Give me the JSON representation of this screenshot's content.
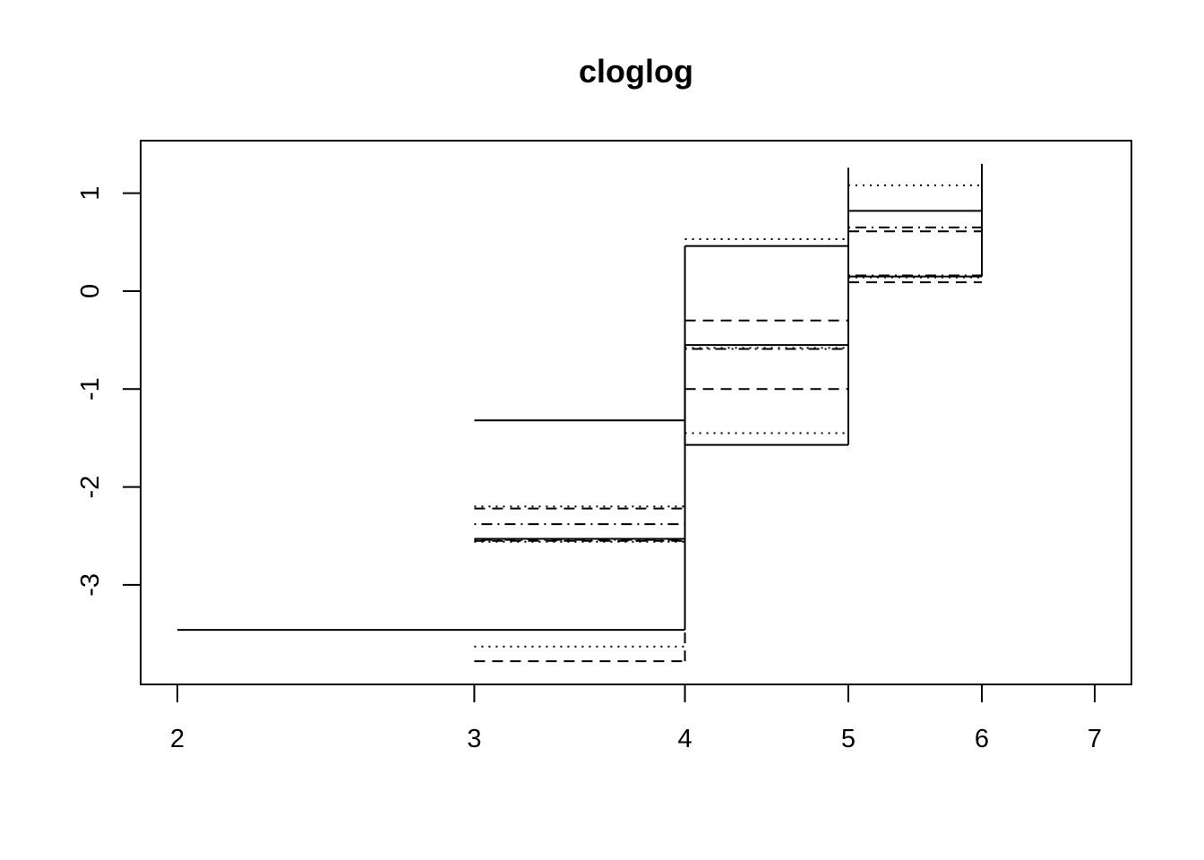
{
  "chart_data": {
    "type": "line",
    "title": "cloglog",
    "xlabel": "",
    "ylabel": "",
    "x_axis": {
      "ticks": [
        2,
        3,
        4,
        5,
        6,
        7
      ],
      "tick_labels": [
        "2",
        "3",
        "4",
        "5",
        "6",
        "7"
      ],
      "scale": "log"
    },
    "y_axis": {
      "ticks": [
        -3,
        -2,
        -1,
        0,
        1
      ],
      "tick_labels": [
        "-3",
        "-2",
        "-1",
        "0",
        "1"
      ],
      "ylim": [
        -3.98,
        1.5
      ]
    },
    "grid": false,
    "legend": "none",
    "color": "#000000",
    "series": [
      {
        "linestyle": "solid",
        "segments": [
          {
            "x": [
              2,
              4
            ],
            "y": [
              -3.46,
              -3.46
            ]
          },
          {
            "x": [
              4,
              4
            ],
            "y": [
              -3.46,
              0.46
            ]
          },
          {
            "x": [
              3,
              4
            ],
            "y": [
              -1.32,
              -1.32
            ]
          },
          {
            "x": [
              3,
              4
            ],
            "y": [
              -2.53,
              -2.53
            ]
          },
          {
            "x": [
              4,
              5
            ],
            "y": [
              0.46,
              0.46
            ]
          },
          {
            "x": [
              4,
              5
            ],
            "y": [
              -0.55,
              -0.55
            ]
          },
          {
            "x": [
              4,
              4
            ],
            "y": [
              -1.57,
              -0.55
            ]
          },
          {
            "x": [
              4,
              5
            ],
            "y": [
              -1.57,
              -1.57
            ]
          },
          {
            "x": [
              5,
              5
            ],
            "y": [
              -1.57,
              1.26
            ]
          },
          {
            "x": [
              5,
              6
            ],
            "y": [
              0.82,
              0.82
            ]
          },
          {
            "x": [
              5,
              6
            ],
            "y": [
              0.15,
              0.15
            ]
          },
          {
            "x": [
              6,
              6
            ],
            "y": [
              0.15,
              1.3
            ]
          }
        ]
      },
      {
        "linestyle": "dotted",
        "segments": [
          {
            "x": [
              3,
              4
            ],
            "y": [
              -3.63,
              -3.63
            ]
          },
          {
            "x": [
              3,
              4
            ],
            "y": [
              -2.2,
              -2.2
            ]
          },
          {
            "x": [
              3,
              4
            ],
            "y": [
              -2.56,
              -2.56
            ]
          },
          {
            "x": [
              4,
              5
            ],
            "y": [
              0.53,
              0.53
            ]
          },
          {
            "x": [
              4,
              5
            ],
            "y": [
              -1.45,
              -1.45
            ]
          },
          {
            "x": [
              4,
              5
            ],
            "y": [
              -0.58,
              -0.58
            ]
          },
          {
            "x": [
              5,
              6
            ],
            "y": [
              1.08,
              1.08
            ]
          },
          {
            "x": [
              5,
              6
            ],
            "y": [
              0.14,
              0.14
            ]
          }
        ]
      },
      {
        "linestyle": "dashed",
        "segments": [
          {
            "x": [
              3,
              4
            ],
            "y": [
              -3.78,
              -3.78
            ]
          },
          {
            "x": [
              4,
              4
            ],
            "y": [
              -3.78,
              -3.46
            ]
          },
          {
            "x": [
              3,
              4
            ],
            "y": [
              -2.22,
              -2.22
            ]
          },
          {
            "x": [
              3,
              4
            ],
            "y": [
              -2.55,
              -2.55
            ]
          },
          {
            "x": [
              4,
              5
            ],
            "y": [
              -0.3,
              -0.3
            ]
          },
          {
            "x": [
              4,
              5
            ],
            "y": [
              -1.0,
              -1.0
            ]
          },
          {
            "x": [
              5,
              6
            ],
            "y": [
              0.61,
              0.61
            ]
          },
          {
            "x": [
              5,
              6
            ],
            "y": [
              0.09,
              0.09
            ]
          }
        ]
      },
      {
        "linestyle": "dotdash",
        "segments": [
          {
            "x": [
              3,
              4
            ],
            "y": [
              -2.38,
              -2.38
            ]
          },
          {
            "x": [
              3,
              4
            ],
            "y": [
              -2.54,
              -2.54
            ]
          },
          {
            "x": [
              4,
              5
            ],
            "y": [
              -0.59,
              -0.59
            ]
          },
          {
            "x": [
              5,
              6
            ],
            "y": [
              0.65,
              0.65
            ]
          },
          {
            "x": [
              5,
              6
            ],
            "y": [
              0.16,
              0.16
            ]
          },
          {
            "x": [
              6,
              6
            ],
            "y": [
              0.16,
              1.28
            ]
          }
        ]
      }
    ]
  }
}
